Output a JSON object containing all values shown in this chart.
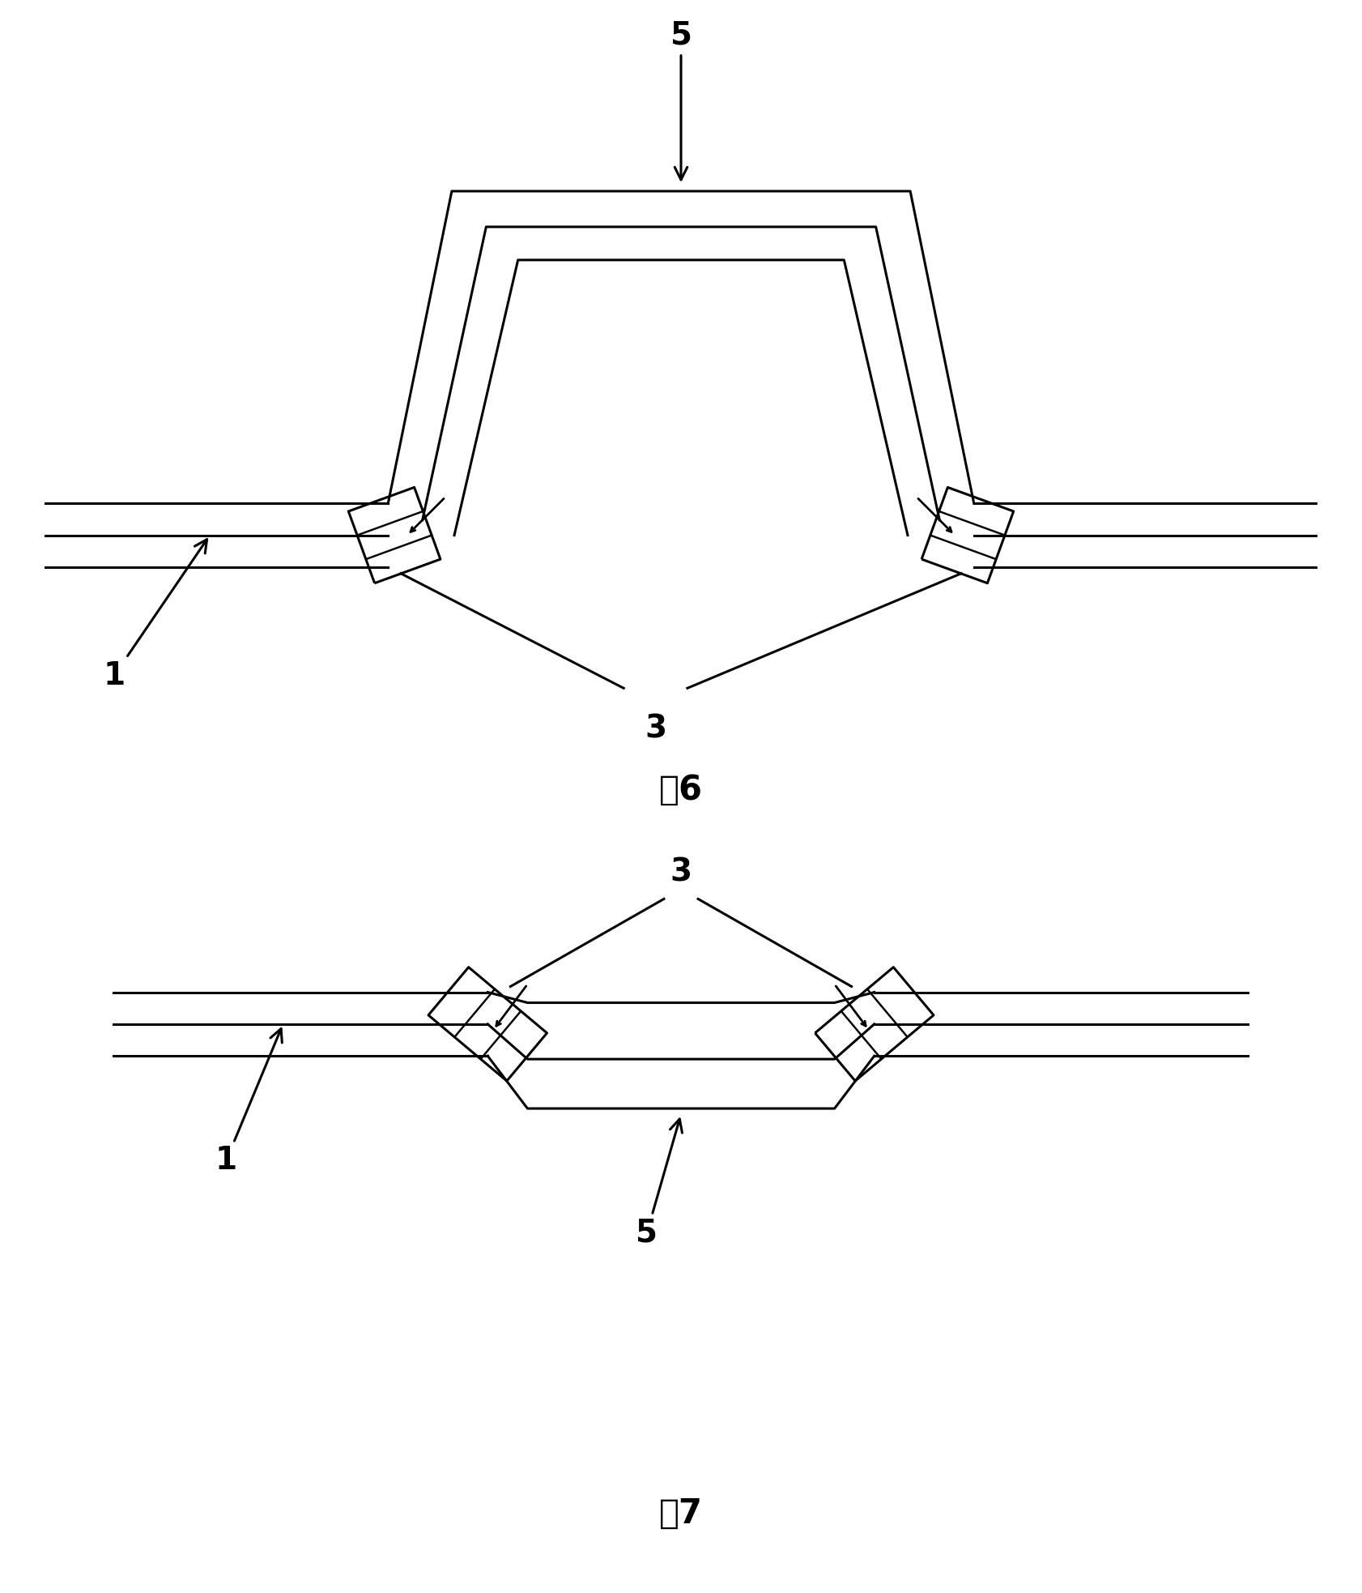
{
  "bg_color": "#ffffff",
  "line_color": "#000000",
  "lw_main": 2.2,
  "fig6_title": "图6",
  "fig7_title": "图7",
  "label_fontsize": 28,
  "title_fontsize": 30
}
